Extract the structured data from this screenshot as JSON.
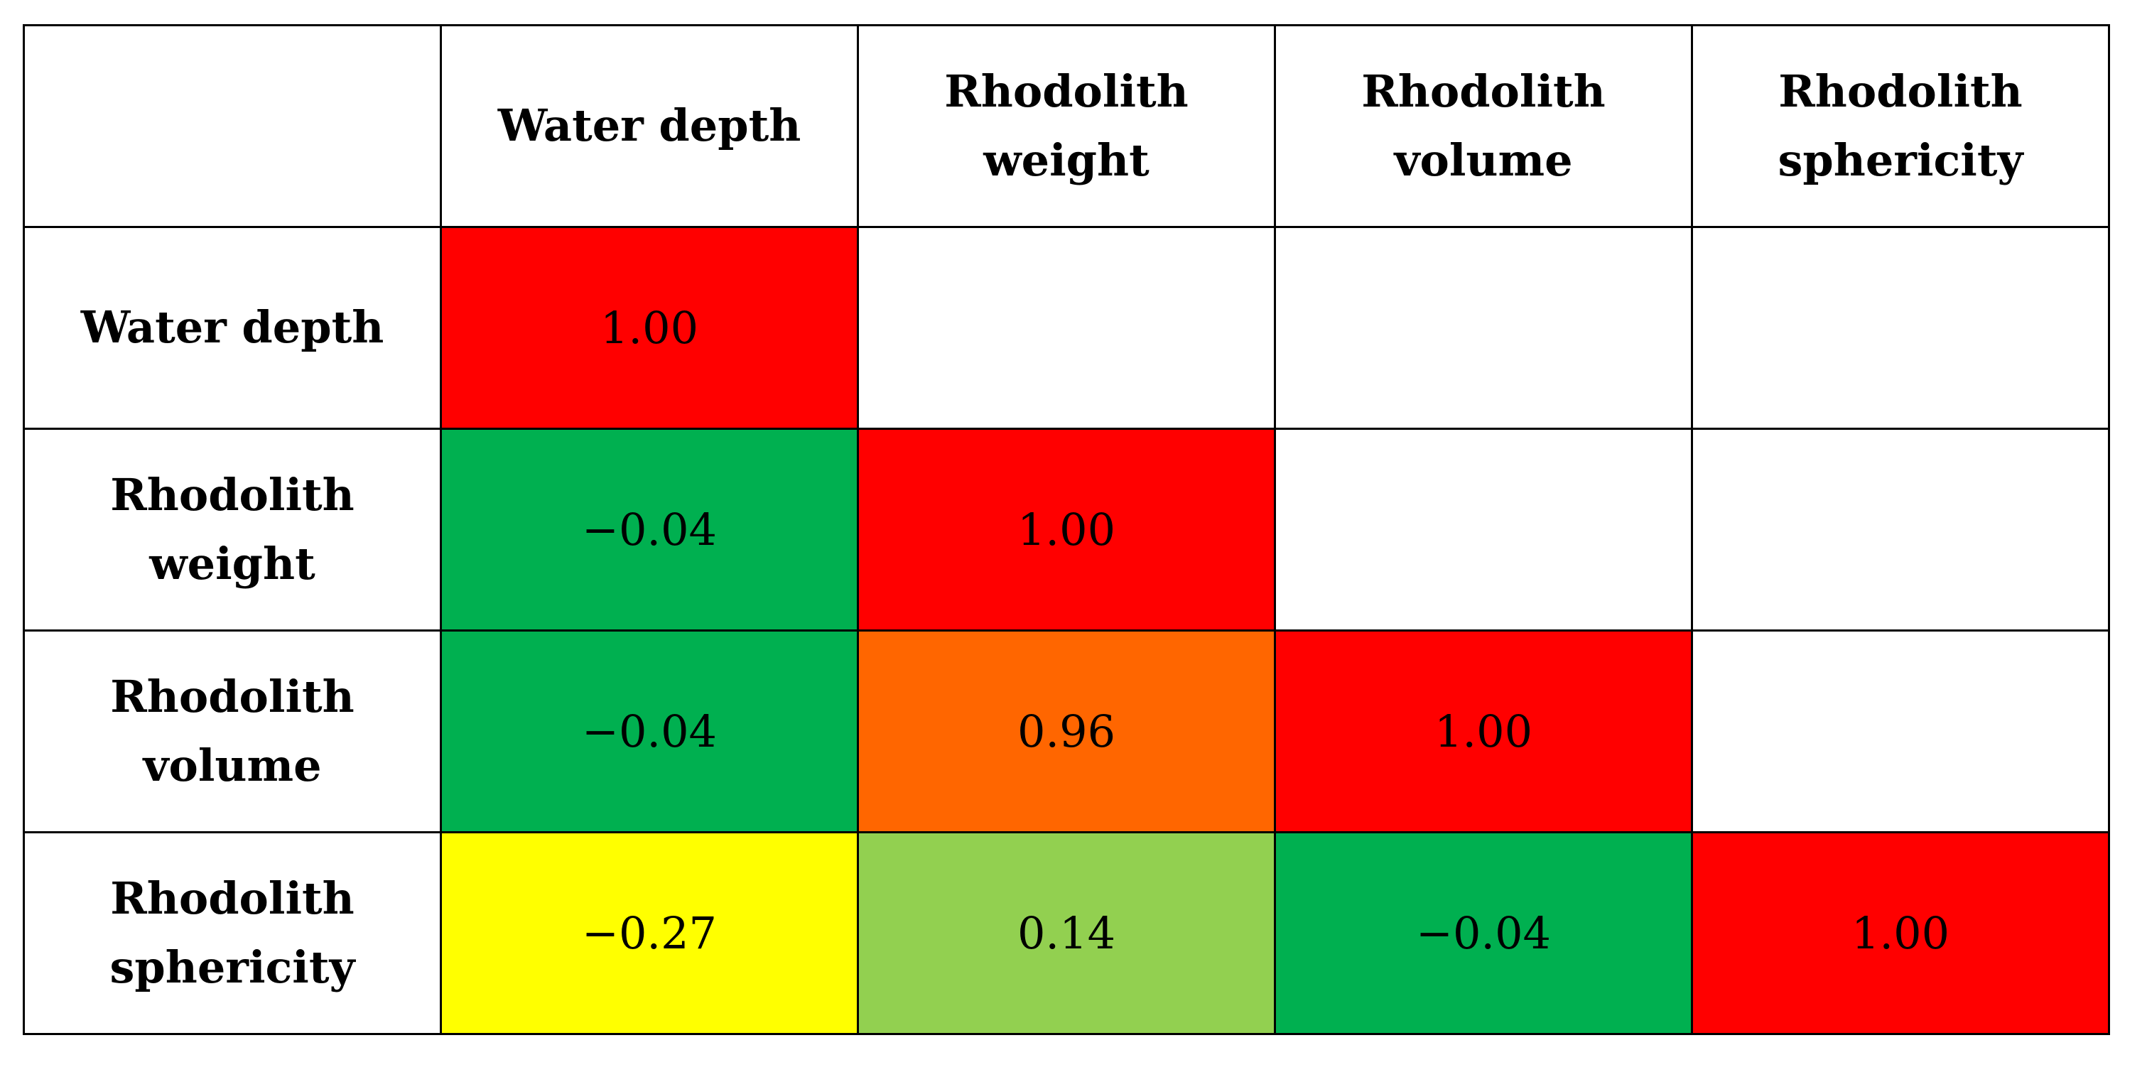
{
  "chart_data": {
    "type": "table",
    "title": "",
    "variables": [
      "Water depth",
      "Rhodolith weight",
      "Rhodolith volume",
      "Rhodolith sphericity"
    ],
    "values": [
      [
        1.0,
        null,
        null,
        null
      ],
      [
        -0.04,
        1.0,
        null,
        null
      ],
      [
        -0.04,
        0.96,
        1.0,
        null
      ],
      [
        -0.27,
        0.14,
        -0.04,
        1.0
      ]
    ],
    "column_headers": [
      [
        "Water depth"
      ],
      [
        "Rhodolith",
        "weight"
      ],
      [
        "Rhodolith",
        "volume"
      ],
      [
        "Rhodolith",
        "sphericity"
      ]
    ],
    "row_headers": [
      [
        "Water depth"
      ],
      [
        "Rhodolith",
        "weight"
      ],
      [
        "Rhodolith",
        "volume"
      ],
      [
        "Rhodolith",
        "sphericity"
      ]
    ],
    "cells": [
      [
        {
          "text": "1.00",
          "color": "#FF0000"
        },
        null,
        null,
        null
      ],
      [
        {
          "text": "−0.04",
          "color": "#00B050"
        },
        {
          "text": "1.00",
          "color": "#FF0000"
        },
        null,
        null
      ],
      [
        {
          "text": "−0.04",
          "color": "#00B050"
        },
        {
          "text": "0.96",
          "color": "#FF6600"
        },
        {
          "text": "1.00",
          "color": "#FF0000"
        },
        null
      ],
      [
        {
          "text": "−0.27",
          "color": "#FFFF00"
        },
        {
          "text": "0.14",
          "color": "#92D050"
        },
        {
          "text": "−0.04",
          "color": "#00B050"
        },
        {
          "text": "1.00",
          "color": "#FF0000"
        }
      ]
    ]
  }
}
